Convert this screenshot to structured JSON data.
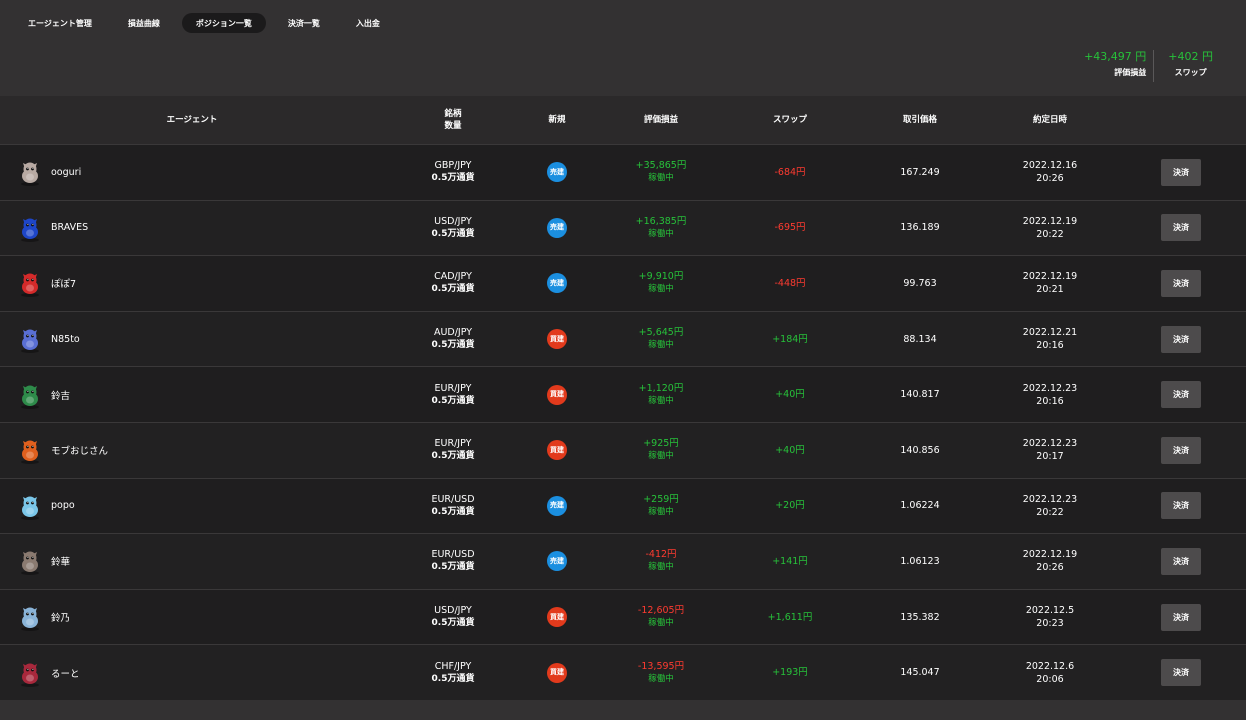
{
  "nav": {
    "tabs": [
      {
        "label": "エージェント管理"
      },
      {
        "label": "損益曲線"
      },
      {
        "label": "ポジション一覧",
        "active": true
      },
      {
        "label": "決済一覧"
      },
      {
        "label": "入出金"
      }
    ]
  },
  "summary": {
    "pl_value": "+43,497 円",
    "pl_label": "評価損益",
    "swap_value": "+402 円",
    "swap_label": "スワップ"
  },
  "table": {
    "headers": {
      "agent": "エージェント",
      "symbol": "銘柄",
      "quantity": "数量",
      "new": "新規",
      "pl": "評価損益",
      "swap": "スワップ",
      "price": "取引価格",
      "datetime": "約定日時"
    },
    "rows": [
      {
        "agent": "ooguri",
        "avatar_color": "#b8aaa3",
        "pair": "GBP/JPY",
        "qty": "0.5万通貨",
        "side": "sell",
        "side_label": "売建",
        "pl": "+35,865円",
        "pl_positive": true,
        "status": "稼働中",
        "swap": "-684円",
        "swap_positive": false,
        "price": "167.249",
        "date": "2022.12.16",
        "time": "20:26",
        "button": "決済"
      },
      {
        "agent": "BRAVES",
        "avatar_color": "#1e46c8",
        "pair": "USD/JPY",
        "qty": "0.5万通貨",
        "side": "sell",
        "side_label": "売建",
        "pl": "+16,385円",
        "pl_positive": true,
        "status": "稼働中",
        "swap": "-695円",
        "swap_positive": false,
        "price": "136.189",
        "date": "2022.12.19",
        "time": "20:22",
        "button": "決済"
      },
      {
        "agent": "ぽぽ7",
        "avatar_color": "#d42a2a",
        "pair": "CAD/JPY",
        "qty": "0.5万通貨",
        "side": "sell",
        "side_label": "売建",
        "pl": "+9,910円",
        "pl_positive": true,
        "status": "稼働中",
        "swap": "-448円",
        "swap_positive": false,
        "price": "99.763",
        "date": "2022.12.19",
        "time": "20:21",
        "button": "決済"
      },
      {
        "agent": "N85to",
        "avatar_color": "#5a6fd4",
        "pair": "AUD/JPY",
        "qty": "0.5万通貨",
        "side": "buy",
        "side_label": "買建",
        "pl": "+5,645円",
        "pl_positive": true,
        "status": "稼働中",
        "swap": "+184円",
        "swap_positive": true,
        "price": "88.134",
        "date": "2022.12.21",
        "time": "20:16",
        "button": "決済"
      },
      {
        "agent": "鈴吉",
        "avatar_color": "#2e8b4a",
        "pair": "EUR/JPY",
        "qty": "0.5万通貨",
        "side": "buy",
        "side_label": "買建",
        "pl": "+1,120円",
        "pl_positive": true,
        "status": "稼働中",
        "swap": "+40円",
        "swap_positive": true,
        "price": "140.817",
        "date": "2022.12.23",
        "time": "20:16",
        "button": "決済"
      },
      {
        "agent": "モブおじさん",
        "avatar_color": "#e0601e",
        "pair": "EUR/JPY",
        "qty": "0.5万通貨",
        "side": "buy",
        "side_label": "買建",
        "pl": "+925円",
        "pl_positive": true,
        "status": "稼働中",
        "swap": "+40円",
        "swap_positive": true,
        "price": "140.856",
        "date": "2022.12.23",
        "time": "20:17",
        "button": "決済"
      },
      {
        "agent": "popo",
        "avatar_color": "#7ac6e8",
        "pair": "EUR/USD",
        "qty": "0.5万通貨",
        "side": "sell",
        "side_label": "売建",
        "pl": "+259円",
        "pl_positive": true,
        "status": "稼働中",
        "swap": "+20円",
        "swap_positive": true,
        "price": "1.06224",
        "date": "2022.12.23",
        "time": "20:22",
        "button": "決済"
      },
      {
        "agent": "鈴華",
        "avatar_color": "#8a7a70",
        "pair": "EUR/USD",
        "qty": "0.5万通貨",
        "side": "sell",
        "side_label": "売建",
        "pl": "-412円",
        "pl_positive": false,
        "status": "稼働中",
        "swap": "+141円",
        "swap_positive": true,
        "price": "1.06123",
        "date": "2022.12.19",
        "time": "20:26",
        "button": "決済"
      },
      {
        "agent": "鈴乃",
        "avatar_color": "#8ab4d8",
        "pair": "USD/JPY",
        "qty": "0.5万通貨",
        "side": "buy",
        "side_label": "買建",
        "pl": "-12,605円",
        "pl_positive": false,
        "status": "稼働中",
        "swap": "+1,611円",
        "swap_positive": true,
        "price": "135.382",
        "date": "2022.12.5",
        "time": "20:23",
        "button": "決済"
      },
      {
        "agent": "るーと",
        "avatar_color": "#a8283c",
        "pair": "CHF/JPY",
        "qty": "0.5万通貨",
        "side": "buy",
        "side_label": "買建",
        "pl": "-13,595円",
        "pl_positive": false,
        "status": "稼働中",
        "swap": "+193円",
        "swap_positive": true,
        "price": "145.047",
        "date": "2022.12.6",
        "time": "20:06",
        "button": "決済"
      }
    ]
  }
}
